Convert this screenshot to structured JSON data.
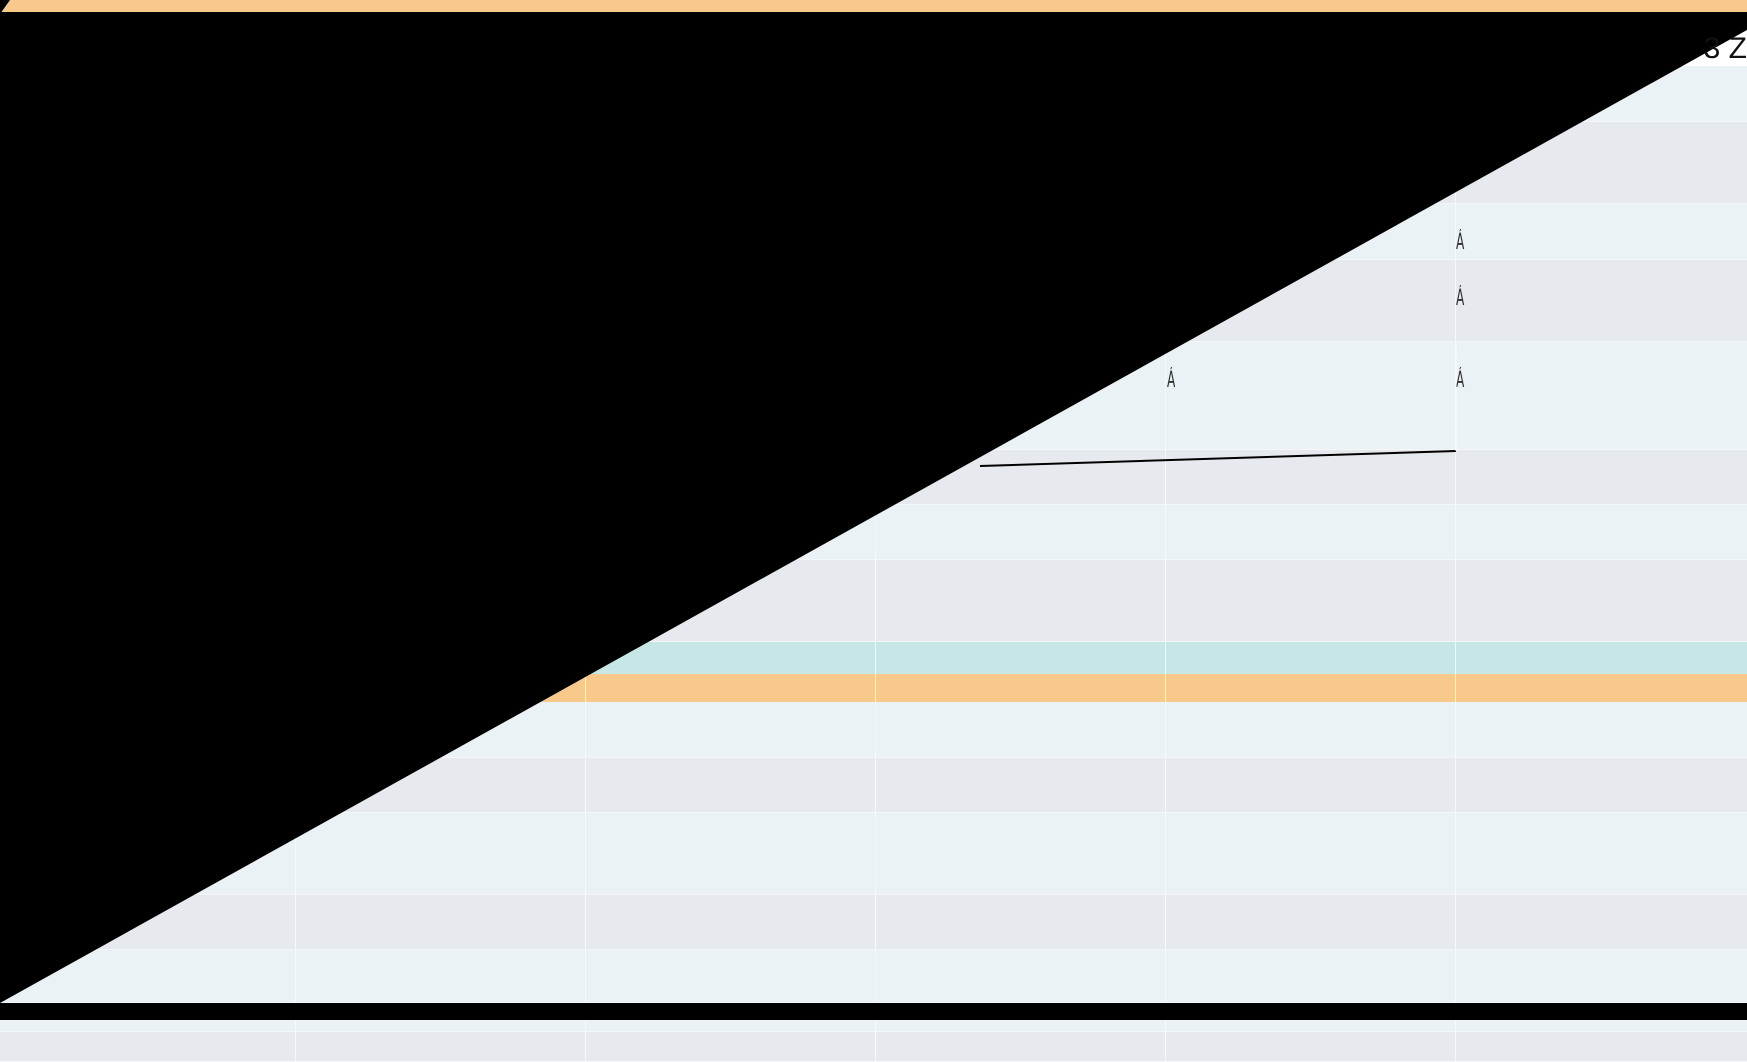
{
  "colors": {
    "band_orange": "#f9c98b",
    "row_light": "#eaf2f5",
    "row_dark": "#e6e9ee",
    "row_teal": "#c6e7e6",
    "overlay_black": "#000000"
  },
  "header": {
    "corner_text": "3 Z"
  },
  "cells": {
    "mark_1": "Á",
    "mark_2": "Á",
    "mark_3": "Á",
    "mark_4": "Á"
  }
}
